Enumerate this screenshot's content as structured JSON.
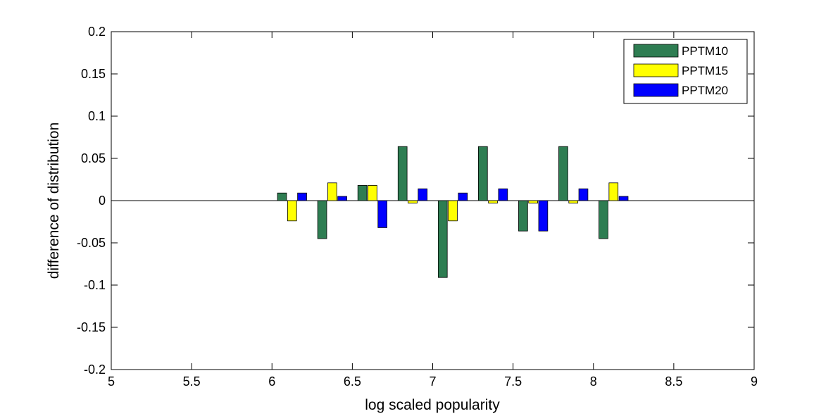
{
  "chart_data": {
    "type": "bar",
    "title": "",
    "xlabel": "log scaled popularity",
    "ylabel": "difference of distribution",
    "xlim": [
      5,
      9
    ],
    "ylim": [
      -0.2,
      0.2
    ],
    "xticks": [
      5,
      5.5,
      6,
      6.5,
      7,
      7.5,
      8,
      8.5,
      9
    ],
    "yticks": [
      -0.2,
      -0.15,
      -0.1,
      -0.05,
      0,
      0.05,
      0.1,
      0.15,
      0.2
    ],
    "xtick_labels": [
      "5",
      "5.5",
      "6",
      "6.5",
      "7",
      "7.5",
      "8",
      "8.5",
      "9"
    ],
    "ytick_labels": [
      "-0.2",
      "-0.15",
      "-0.1",
      "-0.05",
      "0",
      "0.05",
      "0.1",
      "0.15",
      "0.2"
    ],
    "x": [
      6.125,
      6.375,
      6.625,
      6.875,
      7.125,
      7.375,
      7.625,
      7.875,
      8.125
    ],
    "series": [
      {
        "name": "PPTM10",
        "color": "#2e7d52",
        "values": [
          0.009,
          -0.045,
          0.018,
          0.064,
          -0.091,
          0.064,
          -0.036,
          0.064,
          -0.045
        ]
      },
      {
        "name": "PPTM15",
        "color": "#ffff00",
        "values": [
          -0.024,
          0.021,
          0.018,
          -0.003,
          -0.024,
          -0.003,
          -0.003,
          -0.003,
          0.021
        ]
      },
      {
        "name": "PPTM20",
        "color": "#0000ff",
        "values": [
          0.009,
          0.005,
          -0.032,
          0.014,
          0.009,
          0.014,
          -0.036,
          0.014,
          0.005
        ]
      }
    ],
    "grid": false,
    "legend_position": "top-right"
  }
}
